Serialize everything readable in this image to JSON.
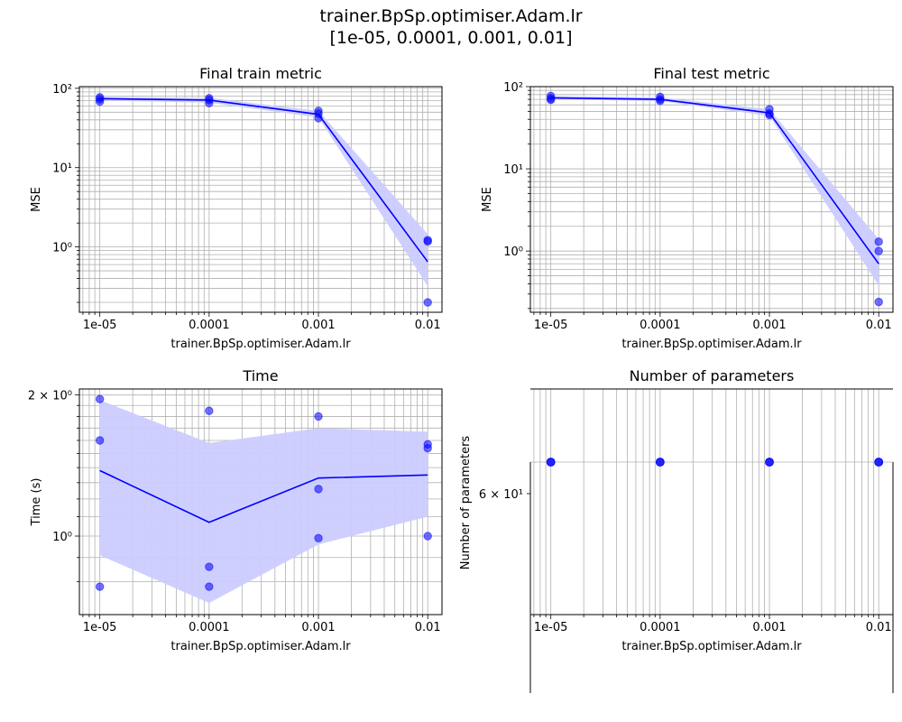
{
  "figure": {
    "title_line1": "trainer.BpSp.optimiser.Adam.lr",
    "title_line2": "[1e-05, 0.0001, 0.001, 0.01]"
  },
  "colors": {
    "line": "#0000ff",
    "band": "#ccccff",
    "grid": "#b0b0b0"
  },
  "chart_data": [
    {
      "type": "line",
      "title": "Final train metric",
      "xlabel": "trainer.BpSp.optimiser.Adam.lr",
      "ylabel": "MSE",
      "xscale": "log",
      "yscale": "log",
      "x": [
        1e-05,
        0.0001,
        0.001,
        0.01
      ],
      "xtick_labels": [
        "1e-05",
        "0.0001",
        "0.001",
        "0.01"
      ],
      "yticks": [
        1,
        10,
        100
      ],
      "ytick_labels": [
        "10⁰",
        "10¹",
        "10²"
      ],
      "ylim": [
        0.15,
        105
      ],
      "grid": true,
      "mean": [
        74,
        71,
        47,
        0.65
      ],
      "band_low": [
        70,
        66,
        43,
        0.32
      ],
      "band_high": [
        78,
        76,
        52,
        1.45
      ],
      "points": [
        [
          1e-05,
          77
        ],
        [
          1e-05,
          73
        ],
        [
          1e-05,
          68
        ],
        [
          0.0001,
          75
        ],
        [
          0.0001,
          71
        ],
        [
          0.0001,
          65
        ],
        [
          0.001,
          52
        ],
        [
          0.001,
          48
        ],
        [
          0.001,
          42
        ],
        [
          0.01,
          1.22
        ],
        [
          0.01,
          1.17
        ],
        [
          0.01,
          0.2
        ]
      ]
    },
    {
      "type": "line",
      "title": "Final test metric",
      "xlabel": "trainer.BpSp.optimiser.Adam.lr",
      "ylabel": "MSE",
      "xscale": "log",
      "yscale": "log",
      "x": [
        1e-05,
        0.0001,
        0.001,
        0.01
      ],
      "xtick_labels": [
        "1e-05",
        "0.0001",
        "0.001",
        "0.01"
      ],
      "yticks": [
        1,
        10,
        100
      ],
      "ytick_labels": [
        "10⁰",
        "10¹",
        "10²"
      ],
      "ylim": [
        0.18,
        100
      ],
      "grid": true,
      "mean": [
        73,
        70,
        48,
        0.7
      ],
      "band_low": [
        70,
        67,
        44,
        0.38
      ],
      "band_high": [
        77,
        74,
        53,
        1.4
      ],
      "points": [
        [
          1e-05,
          77
        ],
        [
          1e-05,
          72
        ],
        [
          1e-05,
          69
        ],
        [
          0.0001,
          75
        ],
        [
          0.0001,
          70
        ],
        [
          0.0001,
          67
        ],
        [
          0.001,
          53
        ],
        [
          0.001,
          47
        ],
        [
          0.001,
          45
        ],
        [
          0.01,
          1.3
        ],
        [
          0.01,
          1.0
        ],
        [
          0.01,
          0.24
        ]
      ]
    },
    {
      "type": "line",
      "title": "Time",
      "xlabel": "trainer.BpSp.optimiser.Adam.lr",
      "ylabel": "Time (s)",
      "xscale": "log",
      "yscale": "log",
      "x": [
        1e-05,
        0.0001,
        0.001,
        0.01
      ],
      "xtick_labels": [
        "1e-05",
        "0.0001",
        "0.001",
        "0.01"
      ],
      "yticks": [
        1,
        2
      ],
      "ytick_labels": [
        "10⁰",
        "2 × 10⁰"
      ],
      "yminor": [
        0.8,
        0.9,
        1.1,
        1.2,
        1.3,
        1.4,
        1.5,
        1.6,
        1.7,
        1.8,
        1.9
      ],
      "ylim": [
        0.68,
        2.06
      ],
      "grid": true,
      "mean": [
        1.38,
        1.07,
        1.33,
        1.35
      ],
      "band_low": [
        0.91,
        0.72,
        0.96,
        1.1
      ],
      "band_high": [
        1.95,
        1.58,
        1.7,
        1.67
      ],
      "points": [
        [
          1e-05,
          1.96
        ],
        [
          1e-05,
          1.6
        ],
        [
          1e-05,
          0.78
        ],
        [
          0.0001,
          1.85
        ],
        [
          0.0001,
          0.86
        ],
        [
          0.0001,
          0.78
        ],
        [
          0.001,
          1.8
        ],
        [
          0.001,
          1.26
        ],
        [
          0.001,
          0.99
        ],
        [
          0.01,
          1.57
        ],
        [
          0.01,
          1.54
        ],
        [
          0.01,
          1.0
        ]
      ]
    },
    {
      "type": "scatter",
      "title": "Number of parameters",
      "xlabel": "trainer.BpSp.optimiser.Adam.lr",
      "ylabel": "Number of parameters",
      "xscale": "log",
      "yscale": "log",
      "x": [
        1e-05,
        0.0001,
        0.001,
        0.01
      ],
      "xtick_labels": [
        "1e-05",
        "0.0001",
        "0.001",
        "0.01"
      ],
      "yticks": [
        60
      ],
      "ytick_labels": [
        "6 × 10¹"
      ],
      "grid": true,
      "values": [
        65,
        65,
        65,
        65
      ]
    }
  ]
}
